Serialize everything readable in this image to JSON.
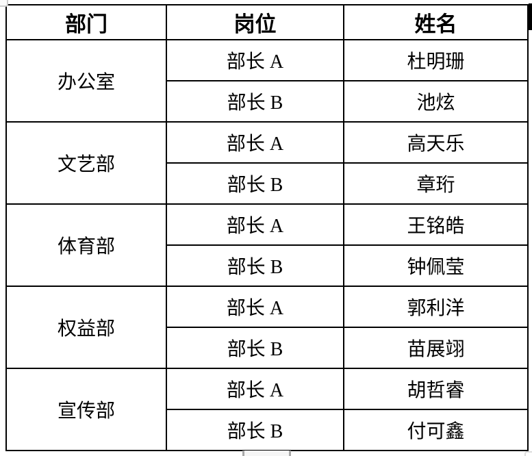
{
  "table": {
    "headers": [
      "部门",
      "岗位",
      "姓名"
    ],
    "groups": [
      {
        "department": "办公室",
        "rows": [
          {
            "position": "部长 A",
            "name": "杜明珊"
          },
          {
            "position": "部长 B",
            "name": "池炫"
          }
        ]
      },
      {
        "department": "文艺部",
        "rows": [
          {
            "position": "部长 A",
            "name": "高天乐"
          },
          {
            "position": "部长 B",
            "name": "章珩"
          }
        ]
      },
      {
        "department": "体育部",
        "rows": [
          {
            "position": "部长 A",
            "name": "王铭皓"
          },
          {
            "position": "部长 B",
            "name": "钟佩莹"
          }
        ]
      },
      {
        "department": "权益部",
        "rows": [
          {
            "position": "部长 A",
            "name": "郭利洋"
          },
          {
            "position": "部长 B",
            "name": "苗展翊"
          }
        ]
      },
      {
        "department": "宣传部",
        "rows": [
          {
            "position": "部长 A",
            "name": "胡哲睿"
          },
          {
            "position": "部长 B",
            "name": "付可鑫"
          }
        ]
      }
    ]
  },
  "colors": {
    "border": "#000000",
    "background": "#ffffff"
  }
}
